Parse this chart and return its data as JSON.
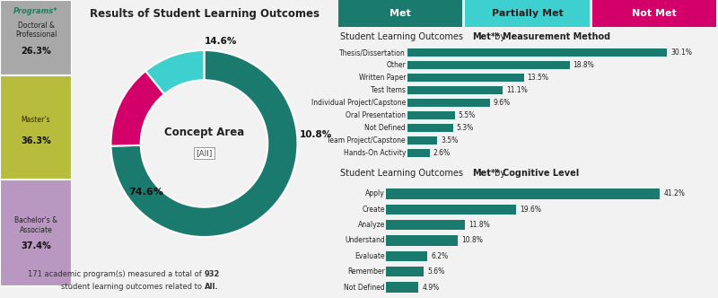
{
  "title": "Results of Student Learning Outcomes",
  "programs_label": "Programs*",
  "programs": [
    {
      "label": "Doctoral &\nProfessional",
      "pct": "26.3%",
      "color": "#a8a8a8"
    },
    {
      "label": "Master's",
      "pct": "36.3%",
      "color": "#b8bc3c"
    },
    {
      "label": "Bachelor's &\nAssociate",
      "pct": "37.4%",
      "color": "#b898c0"
    }
  ],
  "donut_slices": [
    {
      "label": "Met",
      "pct": 74.6,
      "color": "#1a7a6e"
    },
    {
      "label": "Not Met",
      "pct": 14.6,
      "color": "#d4006a"
    },
    {
      "label": "Partially Met",
      "pct": 10.8,
      "color": "#3ecfcf"
    }
  ],
  "donut_center_label": "Concept Area",
  "donut_center_sub": "[All]",
  "footer_line1": "171 academic program(s) measured a total of ",
  "footer_bold1": "932",
  "footer_line2": "\nstudent learning outcomes related to ",
  "footer_bold2": "All",
  "footer_end": ".",
  "tab_labels": [
    "Met",
    "Partially Met",
    "Not Met"
  ],
  "tab_colors": [
    "#1a7a6e",
    "#3ecfcf",
    "#d4006a"
  ],
  "tab_text_colors": [
    "#ffffff",
    "#222222",
    "#ffffff"
  ],
  "measurement_title_plain": "Student Learning Outcomes ",
  "measurement_title_bold": "Met**",
  "measurement_title_rest": " by ",
  "measurement_title_bold2": "Measurement Method",
  "measurement_items": [
    {
      "label": "Thesis/Dissertation",
      "value": 30.1
    },
    {
      "label": "Other",
      "value": 18.8
    },
    {
      "label": "Written Paper",
      "value": 13.5
    },
    {
      "label": "Test Items",
      "value": 11.1
    },
    {
      "label": "Individual Project/Capstone",
      "value": 9.6
    },
    {
      "label": "Oral Presentation",
      "value": 5.5
    },
    {
      "label": "Not Defined",
      "value": 5.3
    },
    {
      "label": "Team Project/Capstone",
      "value": 3.5
    },
    {
      "label": "Hands-On Activity",
      "value": 2.6
    }
  ],
  "cognitive_title_plain": "Student Learning Outcomes ",
  "cognitive_title_bold": "Met**",
  "cognitive_title_rest": " by ",
  "cognitive_title_bold2": "Cognitive Level",
  "cognitive_items": [
    {
      "label": "Apply",
      "value": 41.2
    },
    {
      "label": "Create",
      "value": 19.6
    },
    {
      "label": "Analyze",
      "value": 11.8
    },
    {
      "label": "Understand",
      "value": 10.8
    },
    {
      "label": "Evaluate",
      "value": 6.2
    },
    {
      "label": "Remember",
      "value": 5.6
    },
    {
      "label": "Not Defined",
      "value": 4.9
    }
  ],
  "bar_color": "#1a7a6e",
  "bg_color": "#f2f2f2",
  "center_bg": "#f2f2f2",
  "footer_bg": "#e0e0e0"
}
